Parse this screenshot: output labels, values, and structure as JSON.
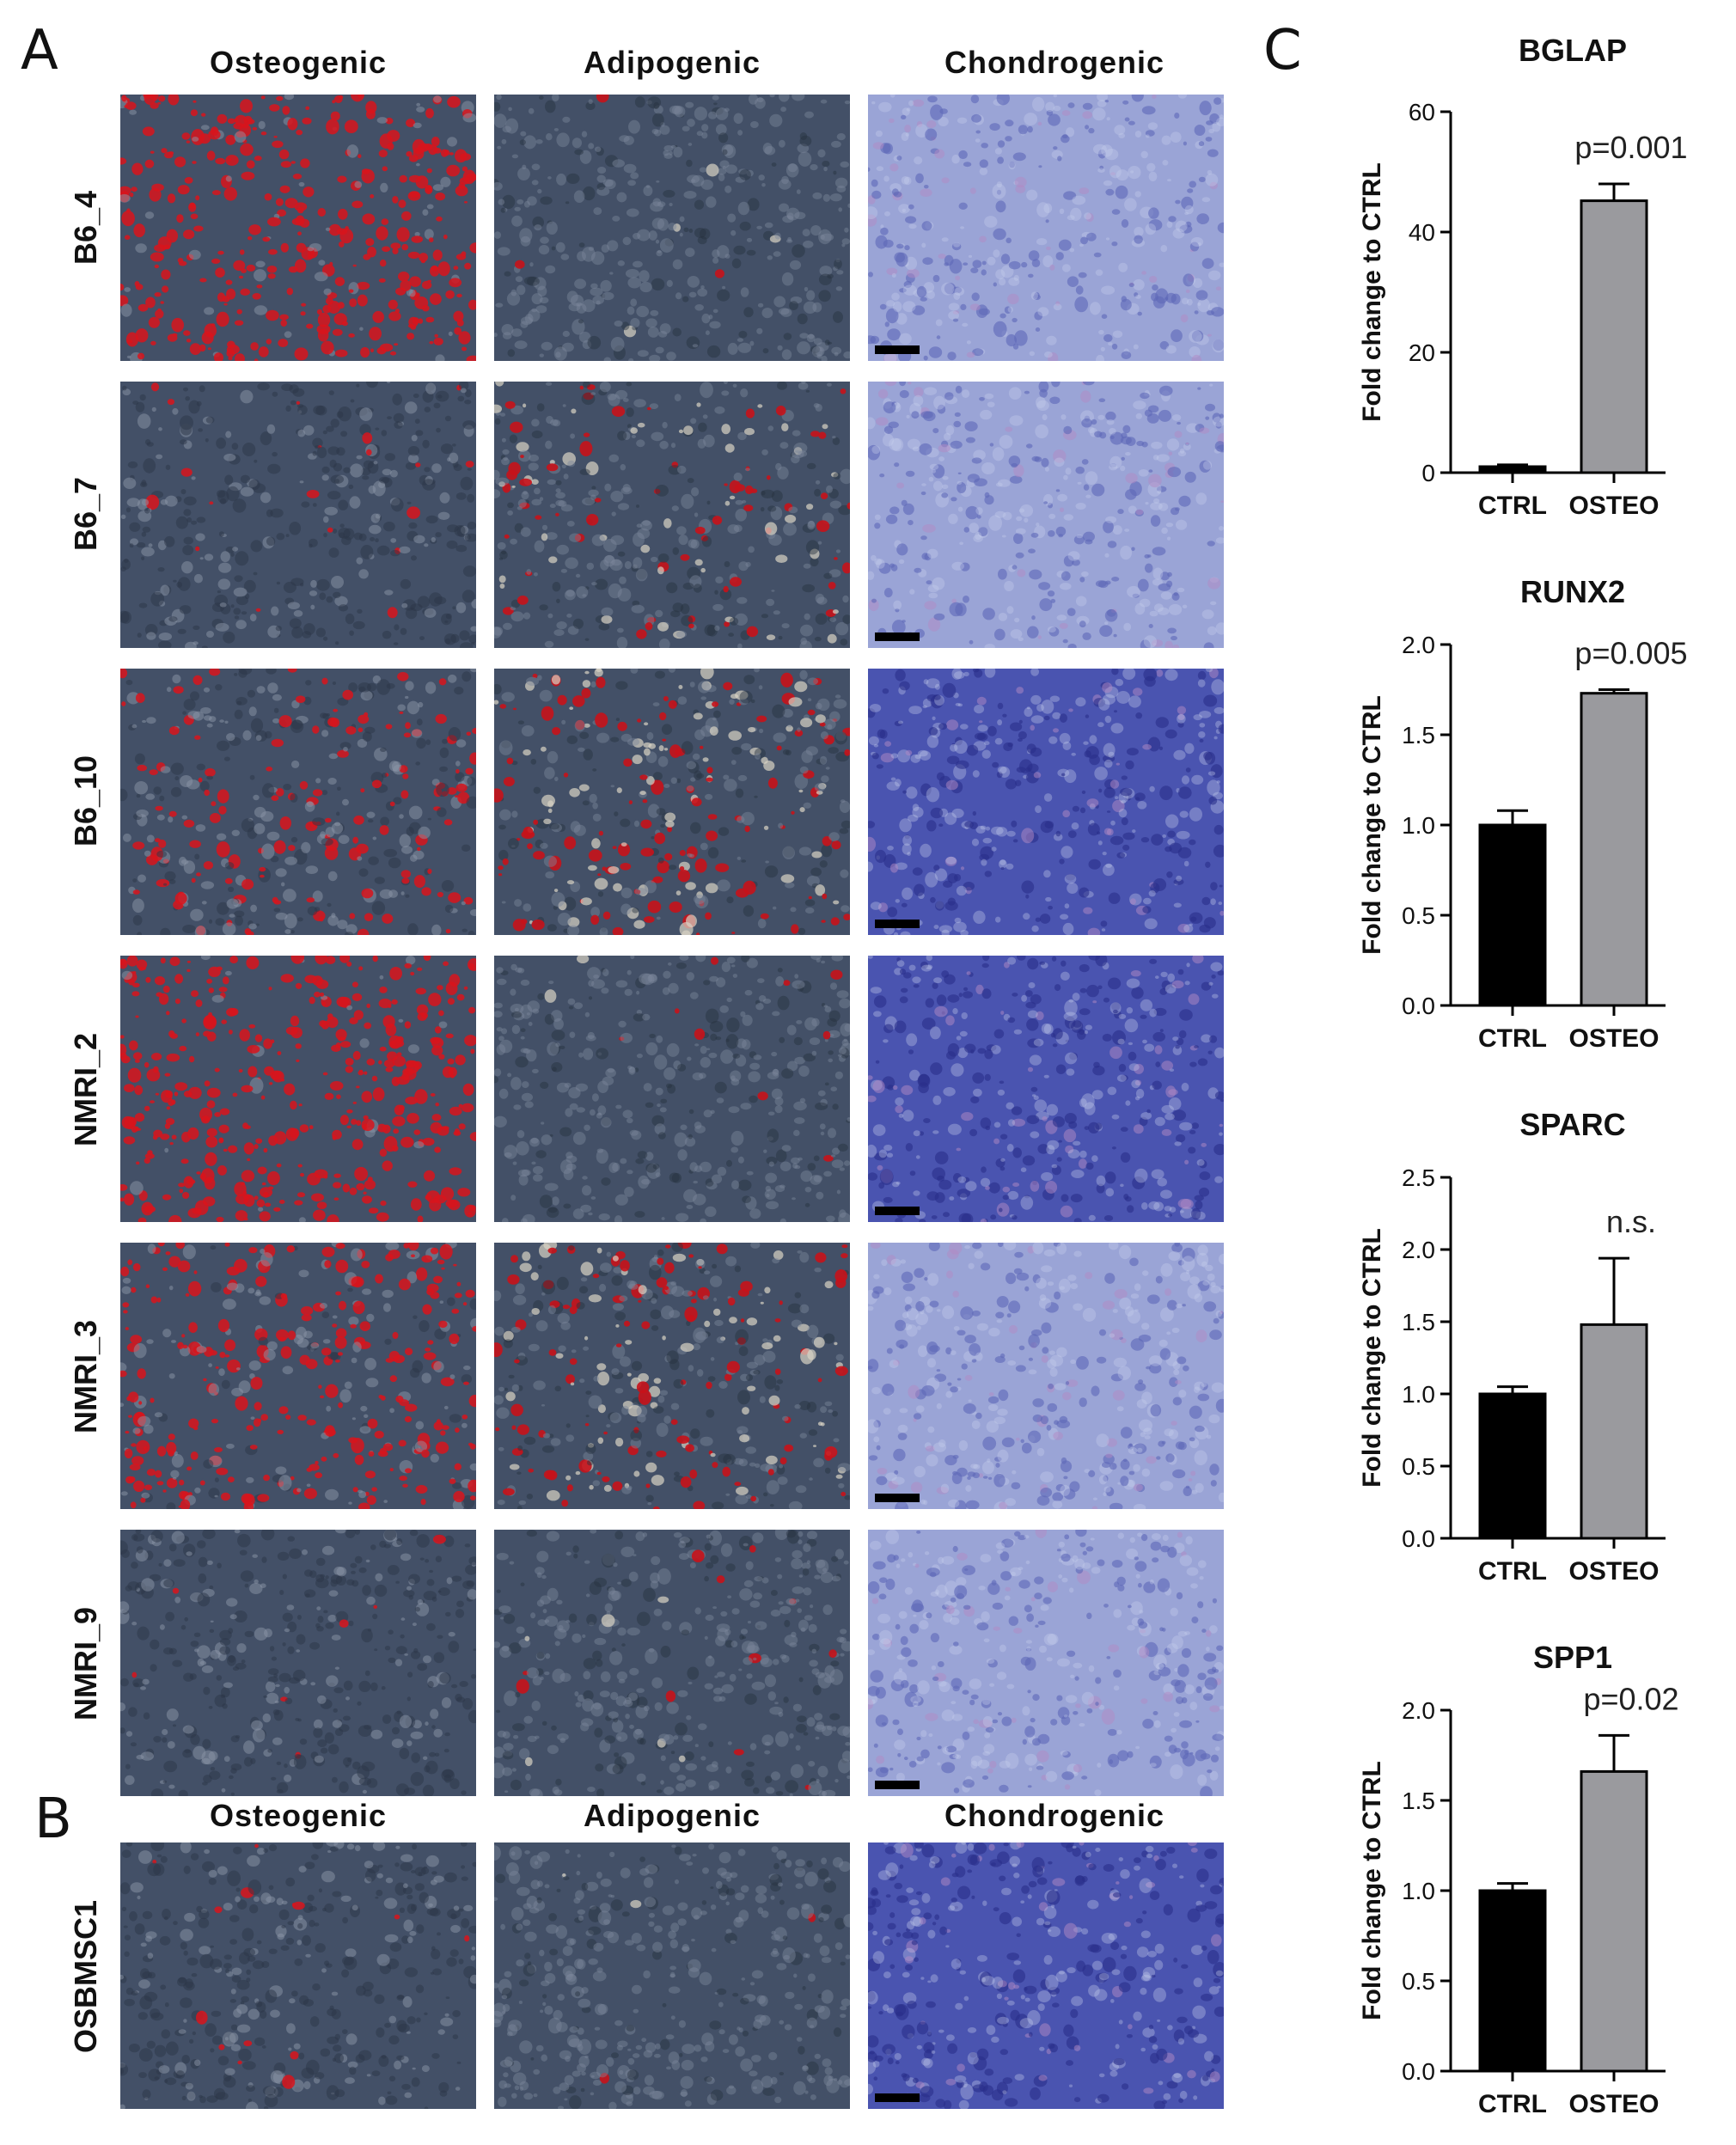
{
  "panels": {
    "a": "A",
    "b": "B",
    "c": "C"
  },
  "columns": [
    "Osteogenic",
    "Adipogenic",
    "Chondrogenic"
  ],
  "rows_a": [
    "B6_4",
    "B6_7",
    "B6_10",
    "NMRI_2",
    "NMRI_3",
    "NMRI_9"
  ],
  "row_b": "OSBMSC1",
  "colors": {
    "alizarin": "#d8141c",
    "phase": "#3e4c62",
    "toluidine": "#5a64b8",
    "osteo_bar": "#9a9a9e",
    "ctrl_bar": "#000000"
  },
  "chart_data": [
    {
      "type": "bar",
      "title": "BGLAP",
      "ylabel": "Fold change to CTRL",
      "categories": [
        "CTRL",
        "OSTEO"
      ],
      "values": [
        1,
        45.2
      ],
      "errors": [
        0.3,
        2.8
      ],
      "ylim": [
        0,
        60
      ],
      "yticks": [
        0,
        20,
        40,
        60
      ],
      "annotation": "p=0.001"
    },
    {
      "type": "bar",
      "title": "RUNX2",
      "ylabel": "Fold change to CTRL",
      "categories": [
        "CTRL",
        "OSTEO"
      ],
      "values": [
        1.0,
        1.73
      ],
      "errors": [
        0.08,
        0.02
      ],
      "ylim": [
        0,
        2.0
      ],
      "yticks": [
        "0.0",
        "0.5",
        "1.0",
        "1.5",
        "2.0"
      ],
      "annotation": "p=0.005"
    },
    {
      "type": "bar",
      "title": "SPARC",
      "ylabel": "Fold change to CTRL",
      "categories": [
        "CTRL",
        "OSTEO"
      ],
      "values": [
        1.0,
        1.48
      ],
      "errors": [
        0.05,
        0.46
      ],
      "ylim": [
        0,
        2.5
      ],
      "yticks": [
        "0.0",
        "0.5",
        "1.0",
        "1.5",
        "2.0",
        "2.5"
      ],
      "annotation": "n.s."
    },
    {
      "type": "bar",
      "title": "SPP1",
      "ylabel": "Fold change to CTRL",
      "categories": [
        "CTRL",
        "OSTEO"
      ],
      "values": [
        1.0,
        1.66
      ],
      "errors": [
        0.04,
        0.2
      ],
      "ylim": [
        0,
        2.0
      ],
      "yticks": [
        "0.0",
        "0.5",
        "1.0",
        "1.5",
        "2.0"
      ],
      "annotation": "p=0.02"
    }
  ]
}
